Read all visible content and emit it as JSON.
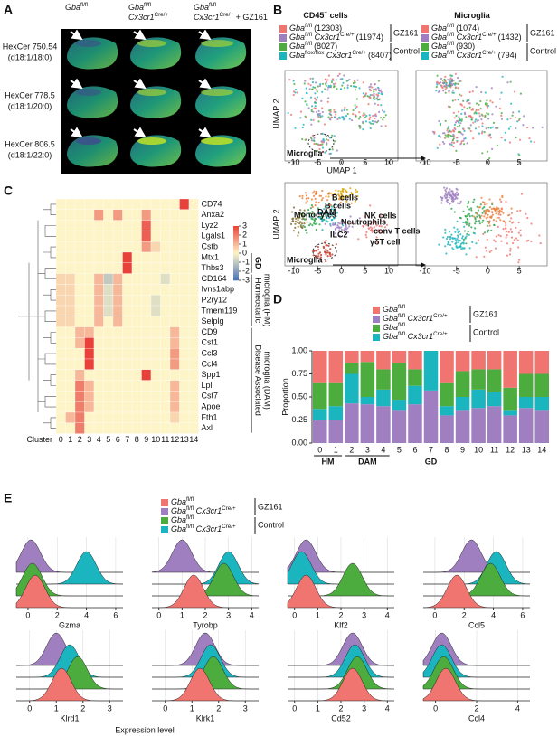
{
  "panel_labels": [
    "A",
    "B",
    "C",
    "D",
    "E"
  ],
  "panel_a": {
    "columns": [
      [
        [
          {
            "text": "Gba",
            "style": "italic"
          },
          {
            "text": "fl/fl",
            "style": "sup"
          }
        ]
      ],
      [
        [
          {
            "text": "Gba",
            "style": "italic"
          },
          {
            "text": "fl/fl",
            "style": "sup"
          }
        ],
        [
          {
            "text": "Cx3cr1",
            "style": "italic"
          },
          {
            "text": "Cre/+",
            "style": "sup"
          }
        ]
      ],
      [
        [
          {
            "text": "Gba",
            "style": "italic"
          },
          {
            "text": "fl/fl",
            "style": "sup"
          }
        ],
        [
          {
            "text": "Cx3cr1",
            "style": "italic"
          },
          {
            "text": "Cre/+",
            "style": "sup"
          },
          {
            "text": " + GZ161",
            "style": "normal"
          }
        ]
      ]
    ],
    "rows": [
      [
        "HexCer 750.54",
        "(d18:1/18:0)"
      ],
      [
        "HexCer 778.5",
        "(d18:1/20:0)"
      ],
      [
        "HexCer 806.5",
        "(d18:1/22:0)"
      ]
    ]
  },
  "panel_b": {
    "titles": [
      [
        {
          "text": "CD45",
          "style": "bold"
        },
        {
          "text": "+",
          "style": "sup"
        },
        {
          "text": " cells",
          "style": "bold"
        }
      ],
      [
        {
          "text": "Microglia",
          "style": "bold"
        }
      ]
    ],
    "legends": [
      [
        {
          "label": [
            {
              "text": "Gba",
              "style": "italic"
            },
            {
              "text": "fl/fl",
              "style": "sup"
            }
          ],
          "count": "(12303)",
          "color": "#f07470"
        },
        {
          "label": [
            {
              "text": "Gba",
              "style": "italic"
            },
            {
              "text": "fl/fl",
              "style": "sup"
            },
            {
              "text": " Cx3cr1",
              "style": "italic"
            },
            {
              "text": "Cre/+",
              "style": "sup"
            }
          ],
          "count": "(11974)",
          "color": "#9f7fc0"
        },
        {
          "label": [
            {
              "text": "Gba",
              "style": "italic"
            },
            {
              "text": "fl/fl",
              "style": "sup"
            }
          ],
          "count": "(8027)",
          "color": "#4dac3e"
        },
        {
          "label": [
            {
              "text": "Gba",
              "style": "italic"
            },
            {
              "text": "flox/flox",
              "style": "sup"
            },
            {
              "text": " Cx3cr1",
              "style": "italic"
            },
            {
              "text": "Cre/+",
              "style": "sup"
            }
          ],
          "count": "(8407)",
          "color": "#1bb5c0"
        }
      ],
      [
        {
          "label": [
            {
              "text": "Gba",
              "style": "italic"
            },
            {
              "text": "fl/fl",
              "style": "sup"
            }
          ],
          "count": "(1074)",
          "color": "#f07470"
        },
        {
          "label": [
            {
              "text": "Gba",
              "style": "italic"
            },
            {
              "text": "fl/fl",
              "style": "sup"
            },
            {
              "text": " Cx3cr1",
              "style": "italic"
            },
            {
              "text": "Cre/+",
              "style": "sup"
            }
          ],
          "count": "(1432)",
          "color": "#9f7fc0"
        },
        {
          "label": [
            {
              "text": "Gba",
              "style": "italic"
            },
            {
              "text": "fl/fl",
              "style": "sup"
            }
          ],
          "count": "(930)",
          "color": "#4dac3e"
        },
        {
          "label": [
            {
              "text": "Gba",
              "style": "italic"
            },
            {
              "text": "fl/fl",
              "style": "sup"
            },
            {
              "text": " Cx3cr1",
              "style": "italic"
            },
            {
              "text": "Cre/+",
              "style": "sup"
            }
          ],
          "count": "(794)",
          "color": "#1bb5c0"
        }
      ]
    ],
    "groups": [
      "GZ161",
      "Control"
    ],
    "x_label": "UMAP 1",
    "y_label": "UMAP 2",
    "xticks_left": [
      -10,
      -5,
      0,
      5,
      10
    ],
    "xticks_right": [
      -10,
      -5,
      0,
      5
    ],
    "callout": "Microglia",
    "cell_types": [
      "B cells",
      "Monocytes",
      "DAM",
      "B cells",
      "NK cells",
      "Neutrophils",
      "ILC2",
      "conv T cells",
      "γδT cell"
    ]
  },
  "panel_c": {
    "genes": [
      "CD74",
      "Anxa2",
      "Lyz2",
      "Lgals1",
      "Cstb",
      "Mtx1",
      "Thbs3",
      "CD164",
      "Ivns1abp",
      "P2ry12",
      "Tmem119",
      "Selplg",
      "CD9",
      "Csf1",
      "Ccl3",
      "Ccl4",
      "Spp1",
      "Lpl",
      "Cst7",
      "Apoe",
      "Fth1",
      "Axl"
    ],
    "clusters": [
      0,
      1,
      2,
      3,
      4,
      5,
      6,
      7,
      8,
      9,
      10,
      11,
      12,
      13,
      14
    ],
    "cluster_label": "Cluster",
    "values": [
      [
        0,
        0,
        0,
        0,
        0,
        0,
        0,
        0,
        0,
        0,
        0,
        0,
        0,
        3,
        0
      ],
      [
        0,
        0,
        0,
        0,
        1.5,
        0,
        1.5,
        0,
        0,
        1.5,
        0,
        0,
        0,
        0,
        0
      ],
      [
        0,
        0,
        0,
        0,
        0,
        0,
        0,
        0,
        0,
        2.5,
        0,
        0,
        0,
        0,
        0
      ],
      [
        0,
        0,
        0,
        0,
        0,
        0,
        0,
        0,
        0,
        2.5,
        0,
        0,
        0,
        0,
        0
      ],
      [
        0,
        0,
        0,
        0,
        0,
        0,
        0,
        0,
        0,
        1.5,
        0.5,
        0,
        0,
        0,
        0
      ],
      [
        0,
        0,
        0,
        0,
        0,
        0,
        0,
        3,
        0,
        0,
        0,
        0,
        0,
        0,
        0
      ],
      [
        0,
        0,
        0,
        0,
        0,
        0,
        0,
        3,
        0,
        0,
        0,
        0,
        0,
        0,
        0
      ],
      [
        0.5,
        0.5,
        0,
        0,
        1,
        -1,
        1,
        0,
        0,
        0,
        0,
        -0.5,
        0,
        0,
        0
      ],
      [
        0.5,
        0.5,
        0,
        0,
        1,
        -0.5,
        1,
        0,
        0,
        0,
        0,
        0,
        0,
        0,
        0
      ],
      [
        0.5,
        0.5,
        0,
        0,
        1,
        -0.5,
        1,
        0,
        0,
        0,
        -0.5,
        0,
        0,
        0,
        0
      ],
      [
        0.5,
        0.5,
        0,
        0,
        1,
        -0.5,
        1,
        0,
        0,
        0,
        -0.5,
        0,
        0,
        0,
        0
      ],
      [
        0.5,
        0.5,
        0,
        0,
        1,
        0,
        1,
        0,
        0,
        0,
        0,
        0,
        0,
        0,
        0
      ],
      [
        0,
        0,
        1,
        1,
        0,
        0,
        0,
        0,
        0,
        0,
        0,
        0,
        1,
        0,
        0
      ],
      [
        0,
        0,
        1,
        3,
        0,
        0,
        0,
        0,
        0,
        0,
        0,
        0,
        1,
        0,
        0
      ],
      [
        0,
        0,
        0,
        3,
        0,
        0,
        0,
        0,
        0,
        0,
        0,
        0,
        1.5,
        0,
        0
      ],
      [
        0,
        0,
        0,
        3,
        0,
        0,
        0,
        0,
        0,
        0,
        0,
        0,
        1.5,
        0,
        0
      ],
      [
        0,
        0,
        1,
        0,
        0,
        0,
        0,
        0,
        0,
        3,
        0,
        0,
        0,
        0,
        0
      ],
      [
        0,
        0,
        2,
        1,
        0,
        0,
        0,
        0,
        0,
        0,
        0,
        0,
        1,
        0,
        0
      ],
      [
        0,
        0,
        2,
        1,
        0,
        0,
        0,
        0,
        0,
        0,
        0,
        0,
        1,
        0,
        0
      ],
      [
        0,
        0,
        2,
        1,
        0,
        0,
        0,
        0,
        0,
        0,
        0,
        0,
        1,
        0,
        0
      ],
      [
        0,
        1,
        2,
        0,
        0,
        0,
        0,
        0,
        0,
        0,
        0,
        0,
        0.5,
        0,
        0
      ],
      [
        0,
        0,
        2,
        0,
        0,
        0,
        0,
        0,
        0,
        0,
        0,
        0,
        0,
        0,
        0
      ]
    ],
    "clim": [
      -3,
      3
    ],
    "colorbar_ticks": [
      3,
      2,
      1,
      0,
      -1,
      -2,
      -3
    ],
    "groups": [
      [
        "GD"
      ],
      [
        "Homeostatic",
        "microglia (HM)"
      ],
      [
        "Disease Associated",
        "microglia (DAM)"
      ]
    ]
  },
  "panel_d": {
    "type": "stacked-bar",
    "categories": [
      0,
      1,
      2,
      3,
      4,
      5,
      6,
      7,
      8,
      9,
      10,
      11,
      12,
      13,
      14
    ],
    "series": [
      {
        "name": [
          {
            "text": "Gba",
            "style": "italic"
          },
          {
            "text": "fl/fl",
            "style": "sup"
          }
        ],
        "color": "#f07470",
        "values": [
          0.35,
          0.35,
          0.13,
          0.12,
          0.2,
          0.13,
          0.2,
          0,
          0.35,
          0.22,
          0.2,
          0.2,
          0.4,
          0.25,
          0.25
        ]
      },
      {
        "name": [
          {
            "text": "Gba",
            "style": "italic"
          },
          {
            "text": "fl/fl",
            "style": "sup"
          },
          {
            "text": " Cx3cr1",
            "style": "italic"
          },
          {
            "text": "Cre/+",
            "style": "sup"
          }
        ],
        "color": "#9f7fc0",
        "values": [
          0.25,
          0.25,
          0.43,
          0.42,
          0.4,
          0.35,
          0.42,
          0.57,
          0.3,
          0.35,
          0.38,
          0.4,
          0.3,
          0.38,
          0.35
        ]
      },
      {
        "name": [
          {
            "text": "Gba",
            "style": "italic"
          },
          {
            "text": "fl/fl",
            "style": "sup"
          }
        ],
        "color": "#4dac3e",
        "values": [
          0.28,
          0.25,
          0.12,
          0.38,
          0.22,
          0.4,
          0.18,
          0,
          0.25,
          0.28,
          0.22,
          0.25,
          0.25,
          0.25,
          0.25
        ]
      },
      {
        "name": [
          {
            "text": "Gba",
            "style": "italic"
          },
          {
            "text": "fl/fl",
            "style": "sup"
          },
          {
            "text": " Cx3cr1",
            "style": "italic"
          },
          {
            "text": "Cre/+",
            "style": "sup"
          }
        ],
        "color": "#1bb5c0",
        "values": [
          0.12,
          0.15,
          0.32,
          0.08,
          0.18,
          0.12,
          0.2,
          0.43,
          0.1,
          0.15,
          0.2,
          0.15,
          0.05,
          0.12,
          0.15
        ]
      }
    ],
    "groups": [
      "GZ161",
      "Control"
    ],
    "ylim": [
      0,
      1
    ],
    "yticks": [
      {
        "value": 0,
        "label": "0.00"
      },
      {
        "value": 0.25,
        "label": "0.25"
      },
      {
        "value": 0.5,
        "label": "0.50"
      },
      {
        "value": 0.75,
        "label": "0.75"
      },
      {
        "value": 1,
        "label": "1.00"
      }
    ],
    "y_label": "Proportion",
    "cluster_groups": [
      "HM",
      "DAM",
      "GD"
    ]
  },
  "panel_e": {
    "series": [
      {
        "name": [
          {
            "text": "Gba",
            "style": "italic"
          },
          {
            "text": "fl/fl",
            "style": "sup"
          }
        ],
        "color": "#f07470"
      },
      {
        "name": [
          {
            "text": "Gba",
            "style": "italic"
          },
          {
            "text": "fl/fl",
            "style": "sup"
          },
          {
            "text": " Cx3cr1",
            "style": "italic"
          },
          {
            "text": "Cre/+",
            "style": "sup"
          }
        ],
        "color": "#9f7fc0"
      },
      {
        "name": [
          {
            "text": "Gba",
            "style": "italic"
          },
          {
            "text": "fl/fl",
            "style": "sup"
          }
        ],
        "color": "#4dac3e"
      },
      {
        "name": [
          {
            "text": "Gba",
            "style": "italic"
          },
          {
            "text": "fl/fl",
            "style": "sup"
          },
          {
            "text": " Cx3cr1",
            "style": "italic"
          },
          {
            "text": "Cre/+",
            "style": "sup"
          }
        ],
        "color": "#1bb5c0"
      }
    ],
    "groups": [
      "GZ161",
      "Control"
    ],
    "ridges": [
      {
        "gene": "Gzma",
        "xlim": [
          -0.8,
          6.5
        ],
        "xticks": [
          0,
          2,
          4,
          6
        ],
        "peaks": [
          0.5,
          0.2,
          0.3,
          4
        ]
      },
      {
        "gene": "Tyrobp",
        "xlim": [
          -0.3,
          4.3
        ],
        "xticks": [
          0,
          1,
          2,
          3,
          4
        ],
        "peaks": [
          1.5,
          1,
          2.8,
          3
        ]
      },
      {
        "gene": "Klf2",
        "xlim": [
          -0.3,
          4.3
        ],
        "xticks": [
          0,
          1,
          2,
          3,
          4
        ],
        "peaks": [
          0.5,
          0.5,
          2.5,
          0.3
        ]
      },
      {
        "gene": "Ccl5",
        "xlim": [
          -0.8,
          6.5
        ],
        "xticks": [
          0,
          2,
          4,
          6
        ],
        "peaks": [
          1.5,
          2.5,
          3.8,
          4.2
        ]
      },
      {
        "gene": "Klrd1",
        "xlim": [
          -0.5,
          3.5
        ],
        "xticks": [
          0,
          1,
          2,
          3
        ],
        "peaks": [
          1.2,
          1,
          1.8,
          1.5
        ]
      },
      {
        "gene": "Klrk1",
        "xlim": [
          -0.5,
          3.5
        ],
        "xticks": [
          0,
          1,
          2,
          3
        ],
        "peaks": [
          1.3,
          1.5,
          1.8,
          1.7
        ]
      },
      {
        "gene": "Cd52",
        "xlim": [
          -0.3,
          4.3
        ],
        "xticks": [
          0,
          1,
          2,
          3,
          4
        ],
        "peaks": [
          2.5,
          2.5,
          2.7,
          2.6
        ]
      },
      {
        "gene": "Ccl4",
        "xlim": [
          -0.6,
          4.6
        ],
        "xticks": [
          0,
          2,
          4
        ],
        "peaks": [
          0.5,
          0.3,
          0.4,
          0.3
        ]
      }
    ],
    "x_label": "Expression level"
  }
}
